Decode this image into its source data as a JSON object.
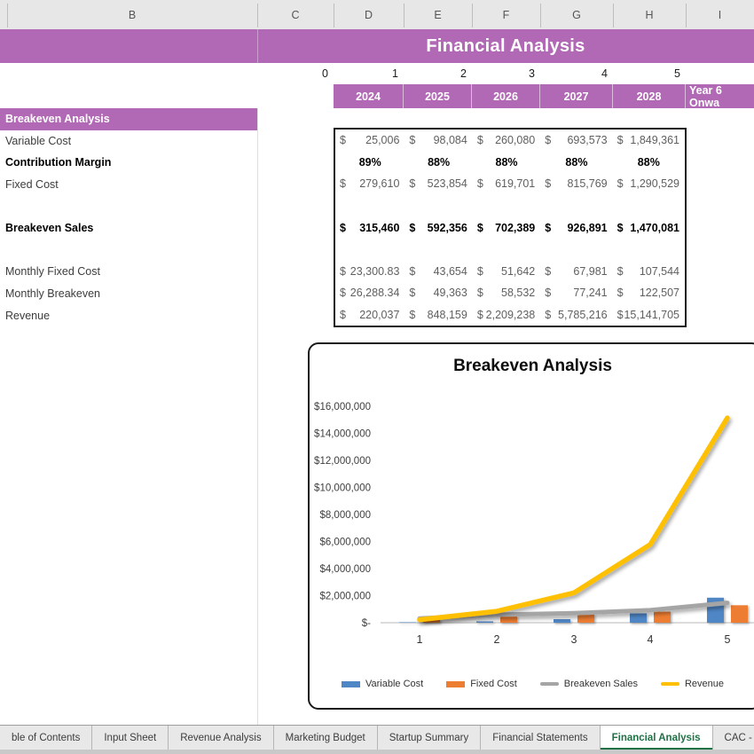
{
  "title_banner": {
    "text": "Financial Analysis",
    "bg": "#b269b5"
  },
  "column_headers": [
    "B",
    "C",
    "D",
    "E",
    "F",
    "G",
    "H",
    "I"
  ],
  "period_numbers": [
    "0",
    "1",
    "2",
    "3",
    "4",
    "5"
  ],
  "year_header": {
    "cells": [
      "2024",
      "2025",
      "2026",
      "2027",
      "2028",
      "Year 6 Onwa"
    ],
    "bg": "#b269b5"
  },
  "sidebar": {
    "rows": [
      {
        "label": "Breakeven Analysis",
        "style": "highlight"
      },
      {
        "label": "Variable Cost",
        "style": "normal"
      },
      {
        "label": "Contribution Margin",
        "style": "bold"
      },
      {
        "label": "Fixed Cost",
        "style": "normal"
      },
      {
        "label": "",
        "style": "blank"
      },
      {
        "label": "Breakeven Sales",
        "style": "bold"
      },
      {
        "label": "",
        "style": "blank"
      },
      {
        "label": "Monthly Fixed Cost",
        "style": "normal"
      },
      {
        "label": "Monthly Breakeven",
        "style": "normal"
      },
      {
        "label": "Revenue",
        "style": "normal"
      }
    ]
  },
  "table": {
    "currency_sign": "$",
    "rows": [
      {
        "name": "variable-cost",
        "format": "currency",
        "bold": false,
        "values": [
          "25,006",
          "98,084",
          "260,080",
          "693,573",
          "1,849,361"
        ]
      },
      {
        "name": "contribution-margin",
        "format": "percent",
        "bold": true,
        "values": [
          "89%",
          "88%",
          "88%",
          "88%",
          "88%"
        ]
      },
      {
        "name": "fixed-cost",
        "format": "currency",
        "bold": false,
        "values": [
          "279,610",
          "523,854",
          "619,701",
          "815,769",
          "1,290,529"
        ]
      },
      {
        "name": "spacer-1",
        "format": "blank",
        "bold": false,
        "values": [
          "",
          "",
          "",
          "",
          ""
        ]
      },
      {
        "name": "breakeven-sales",
        "format": "currency",
        "bold": true,
        "values": [
          "315,460",
          "592,356",
          "702,389",
          "926,891",
          "1,470,081"
        ]
      },
      {
        "name": "spacer-2",
        "format": "blank",
        "bold": false,
        "values": [
          "",
          "",
          "",
          "",
          ""
        ]
      },
      {
        "name": "monthly-fixed-cost",
        "format": "currency",
        "bold": false,
        "values": [
          "23,300.83",
          "43,654",
          "51,642",
          "67,981",
          "107,544"
        ]
      },
      {
        "name": "monthly-breakeven",
        "format": "currency",
        "bold": false,
        "values": [
          "26,288.34",
          "49,363",
          "58,532",
          "77,241",
          "122,507"
        ]
      },
      {
        "name": "revenue",
        "format": "currency",
        "bold": false,
        "values": [
          "220,037",
          "848,159",
          "2,209,238",
          "5,785,216",
          "15,141,705"
        ]
      }
    ]
  },
  "chart_data": {
    "type": "combo",
    "title": "Breakeven Analysis",
    "categories": [
      "1",
      "2",
      "3",
      "4",
      "5"
    ],
    "series": [
      {
        "name": "Variable Cost",
        "type": "bar",
        "color": "#4f86c6",
        "values": [
          25006,
          98084,
          260080,
          693573,
          1849361
        ]
      },
      {
        "name": "Fixed Cost",
        "type": "bar",
        "color": "#ed7d31",
        "values": [
          279610,
          523854,
          619701,
          815769,
          1290529
        ]
      },
      {
        "name": "Breakeven Sales",
        "type": "line",
        "color": "#a5a5a5",
        "values": [
          315460,
          592356,
          702389,
          926891,
          1470081
        ]
      },
      {
        "name": "Revenue",
        "type": "line",
        "color": "#fec000",
        "values": [
          220037,
          848159,
          2209238,
          5785216,
          15141705
        ]
      }
    ],
    "ylim": [
      0,
      16000000
    ],
    "ytick_labels": [
      "$16,000,000",
      "$14,000,000",
      "$12,000,000",
      "$10,000,000",
      "$8,000,000",
      "$6,000,000",
      "$4,000,000",
      "$2,000,000",
      "$-"
    ],
    "legend_position": "bottom",
    "grid": false
  },
  "tabs": {
    "items": [
      {
        "label": "ble of Contents",
        "active": false
      },
      {
        "label": "Input Sheet",
        "active": false
      },
      {
        "label": "Revenue Analysis",
        "active": false
      },
      {
        "label": "Marketing Budget",
        "active": false
      },
      {
        "label": "Startup Summary",
        "active": false
      },
      {
        "label": "Financial Statements",
        "active": false
      },
      {
        "label": "Financial Analysis",
        "active": true
      },
      {
        "label": "CAC - CLV ...",
        "active": false
      }
    ],
    "add_sheet_icon": "⊕",
    "active_color": "#1e7145"
  }
}
